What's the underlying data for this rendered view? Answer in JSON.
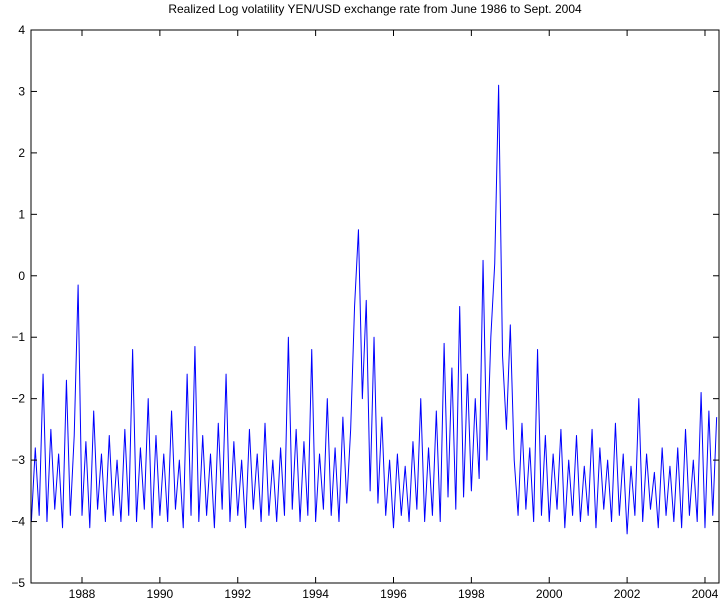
{
  "chart_data": {
    "type": "line",
    "title": "Realized Log volatility YEN/USD exchange rate from June 1986 to Sept. 2004",
    "color": "#0000ff",
    "xlim": [
      1986.69,
      2004.36
    ],
    "ylim": [
      -5,
      4
    ],
    "xticks": [
      1988,
      1990,
      1992,
      1994,
      1996,
      1998,
      2000,
      2002,
      2004
    ],
    "yticks": [
      {
        "value": -5,
        "label": "−5"
      },
      {
        "value": -4,
        "label": "−4"
      },
      {
        "value": -3,
        "label": "−3"
      },
      {
        "value": -2,
        "label": "−2"
      },
      {
        "value": -1,
        "label": "−1"
      },
      0,
      1,
      2,
      3,
      4
    ],
    "x": [
      1986.7,
      1986.8,
      1986.9,
      1987.0,
      1987.1,
      1987.2,
      1987.3,
      1987.4,
      1987.5,
      1987.6,
      1987.7,
      1987.8,
      1987.9,
      1988.0,
      1988.1,
      1988.2,
      1988.3,
      1988.4,
      1988.5,
      1988.6,
      1988.7,
      1988.8,
      1988.9,
      1989.0,
      1989.1,
      1989.2,
      1989.3,
      1989.4,
      1989.5,
      1989.6,
      1989.7,
      1989.8,
      1989.9,
      1990.0,
      1990.1,
      1990.2,
      1990.3,
      1990.4,
      1990.5,
      1990.6,
      1990.7,
      1990.8,
      1990.9,
      1991.0,
      1991.1,
      1991.2,
      1991.3,
      1991.4,
      1991.5,
      1991.6,
      1991.7,
      1991.8,
      1991.9,
      1992.0,
      1992.1,
      1992.2,
      1992.3,
      1992.4,
      1992.5,
      1992.6,
      1992.7,
      1992.8,
      1992.9,
      1993.0,
      1993.1,
      1993.2,
      1993.3,
      1993.4,
      1993.5,
      1993.6,
      1993.7,
      1993.8,
      1993.9,
      1994.0,
      1994.1,
      1994.2,
      1994.3,
      1994.4,
      1994.5,
      1994.6,
      1994.7,
      1994.8,
      1994.9,
      1995.0,
      1995.1,
      1995.2,
      1995.3,
      1995.4,
      1995.5,
      1995.6,
      1995.7,
      1995.8,
      1995.9,
      1996.0,
      1996.1,
      1996.2,
      1996.3,
      1996.4,
      1996.5,
      1996.6,
      1996.7,
      1996.8,
      1996.9,
      1997.0,
      1997.1,
      1997.2,
      1997.3,
      1997.4,
      1997.5,
      1997.6,
      1997.7,
      1997.8,
      1997.9,
      1998.0,
      1998.1,
      1998.2,
      1998.3,
      1998.4,
      1998.5,
      1998.6,
      1998.7,
      1998.8,
      1998.9,
      1999.0,
      1999.1,
      1999.2,
      1999.3,
      1999.4,
      1999.5,
      1999.6,
      1999.7,
      1999.8,
      1999.9,
      2000.0,
      2000.1,
      2000.2,
      2000.3,
      2000.4,
      2000.5,
      2000.6,
      2000.7,
      2000.8,
      2000.9,
      2001.0,
      2001.1,
      2001.2,
      2001.3,
      2001.4,
      2001.5,
      2001.6,
      2001.7,
      2001.8,
      2001.9,
      2002.0,
      2002.1,
      2002.2,
      2002.3,
      2002.4,
      2002.5,
      2002.6,
      2002.7,
      2002.8,
      2002.9,
      2003.0,
      2003.1,
      2003.2,
      2003.3,
      2003.4,
      2003.5,
      2003.6,
      2003.7,
      2003.8,
      2003.9,
      2004.0,
      2004.1,
      2004.2,
      2004.3
    ],
    "values": [
      -4.0,
      -2.8,
      -3.9,
      -1.6,
      -4.0,
      -2.5,
      -3.8,
      -2.9,
      -4.1,
      -1.7,
      -3.9,
      -2.6,
      -0.15,
      -3.9,
      -2.7,
      -4.1,
      -2.2,
      -3.8,
      -2.9,
      -4.0,
      -2.6,
      -3.9,
      -3.0,
      -4.0,
      -2.5,
      -3.9,
      -1.2,
      -4.0,
      -2.8,
      -3.8,
      -2.0,
      -4.1,
      -2.6,
      -3.9,
      -2.9,
      -4.0,
      -2.2,
      -3.8,
      -3.0,
      -4.1,
      -1.6,
      -3.9,
      -1.15,
      -4.0,
      -2.6,
      -3.9,
      -2.9,
      -4.1,
      -2.4,
      -3.8,
      -1.6,
      -4.0,
      -2.7,
      -3.9,
      -3.0,
      -4.1,
      -2.5,
      -3.8,
      -2.9,
      -4.0,
      -2.4,
      -3.9,
      -3.0,
      -4.0,
      -2.8,
      -3.9,
      -1.0,
      -3.8,
      -2.5,
      -4.0,
      -2.7,
      -3.9,
      -1.2,
      -4.0,
      -2.9,
      -3.8,
      -2.0,
      -3.9,
      -2.8,
      -4.0,
      -2.3,
      -3.7,
      -2.5,
      -0.5,
      0.75,
      -2.0,
      -0.4,
      -3.5,
      -1.0,
      -3.7,
      -2.3,
      -3.9,
      -3.0,
      -4.1,
      -2.9,
      -3.9,
      -3.1,
      -4.0,
      -2.7,
      -3.8,
      -2.0,
      -4.0,
      -2.8,
      -3.9,
      -2.2,
      -4.0,
      -1.1,
      -3.6,
      -1.5,
      -3.8,
      -0.5,
      -3.6,
      -1.6,
      -3.5,
      -2.0,
      -3.3,
      0.25,
      -3.0,
      -1.0,
      0.2,
      3.1,
      -1.3,
      -2.5,
      -0.8,
      -3.0,
      -3.9,
      -2.4,
      -3.8,
      -2.8,
      -4.0,
      -1.2,
      -3.9,
      -2.6,
      -4.0,
      -2.9,
      -3.8,
      -2.5,
      -4.1,
      -3.0,
      -3.9,
      -2.6,
      -4.0,
      -3.1,
      -3.9,
      -2.5,
      -4.1,
      -2.8,
      -3.8,
      -3.0,
      -4.0,
      -2.4,
      -3.9,
      -2.9,
      -4.2,
      -3.1,
      -3.9,
      -2.0,
      -4.0,
      -2.9,
      -3.8,
      -3.2,
      -4.1,
      -2.8,
      -3.9,
      -3.1,
      -4.0,
      -2.8,
      -4.1,
      -2.5,
      -3.9,
      -3.0,
      -4.0,
      -1.9,
      -4.1,
      -2.2,
      -3.9,
      -2.3
    ]
  }
}
